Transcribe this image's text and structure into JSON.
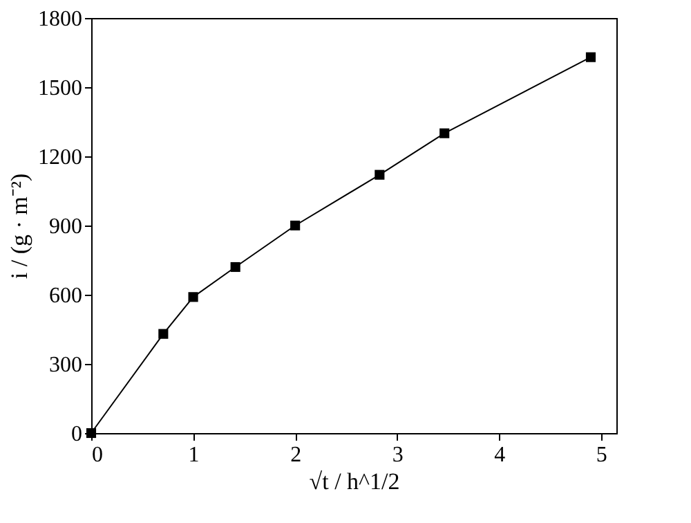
{
  "chart_data": {
    "type": "line",
    "xlabel": "√t / h^1/2",
    "ylabel": "i / (g · m⁻²)",
    "x": [
      0,
      0.707,
      1,
      1.414,
      2,
      2.828,
      3.464,
      4.899
    ],
    "series": [
      {
        "color": "#000000",
        "values": [
          0,
          430,
          590,
          720,
          900,
          1120,
          1300,
          1630
        ]
      }
    ],
    "xlim": [
      0,
      5.15
    ],
    "xticks": [
      0,
      1,
      2,
      3,
      4,
      5
    ],
    "ylim": [
      0,
      1800
    ],
    "yticks": [
      0,
      300,
      600,
      900,
      1200,
      1500,
      1800
    ],
    "grid": false,
    "marker": "square",
    "line_style": "solid"
  }
}
